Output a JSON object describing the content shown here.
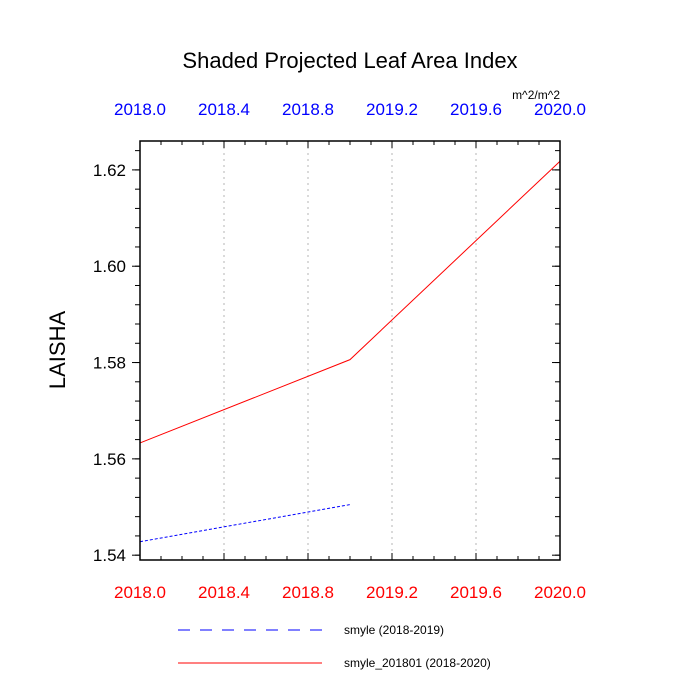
{
  "chart_data": {
    "type": "line",
    "title": "Shaded Projected Leaf Area Index",
    "units": "m^2/m^2",
    "ylabel": "LAISHA",
    "xlabel": "",
    "xlim": [
      2018.0,
      2020.0
    ],
    "ylim": [
      1.539,
      1.626
    ],
    "x_ticks": [
      "2018.0",
      "2018.4",
      "2018.8",
      "2019.2",
      "2019.6",
      "2020.0"
    ],
    "x_tick_values": [
      2018.0,
      2018.4,
      2018.8,
      2019.2,
      2019.6,
      2020.0
    ],
    "y_ticks": [
      "1.54",
      "1.56",
      "1.58",
      "1.60",
      "1.62"
    ],
    "y_tick_values": [
      1.54,
      1.56,
      1.58,
      1.6,
      1.62
    ],
    "y_minor_step": 0.004,
    "bottom_tick_color": "#ff0000",
    "top_tick_color": "#0000ff",
    "grid": "vertical dotted",
    "series": [
      {
        "name": "smyle (2018-2019)",
        "color": "#0000ff",
        "dash": "dashed",
        "x": [
          2018.0,
          2019.0
        ],
        "y": [
          1.5428,
          1.5505
        ]
      },
      {
        "name": "smyle_201801 (2018-2020)",
        "color": "#ff0000",
        "dash": "solid",
        "x": [
          2018.0,
          2019.0,
          2020.0
        ],
        "y": [
          1.5633,
          1.5806,
          1.6218
        ]
      }
    ],
    "legend_position": "bottom"
  }
}
